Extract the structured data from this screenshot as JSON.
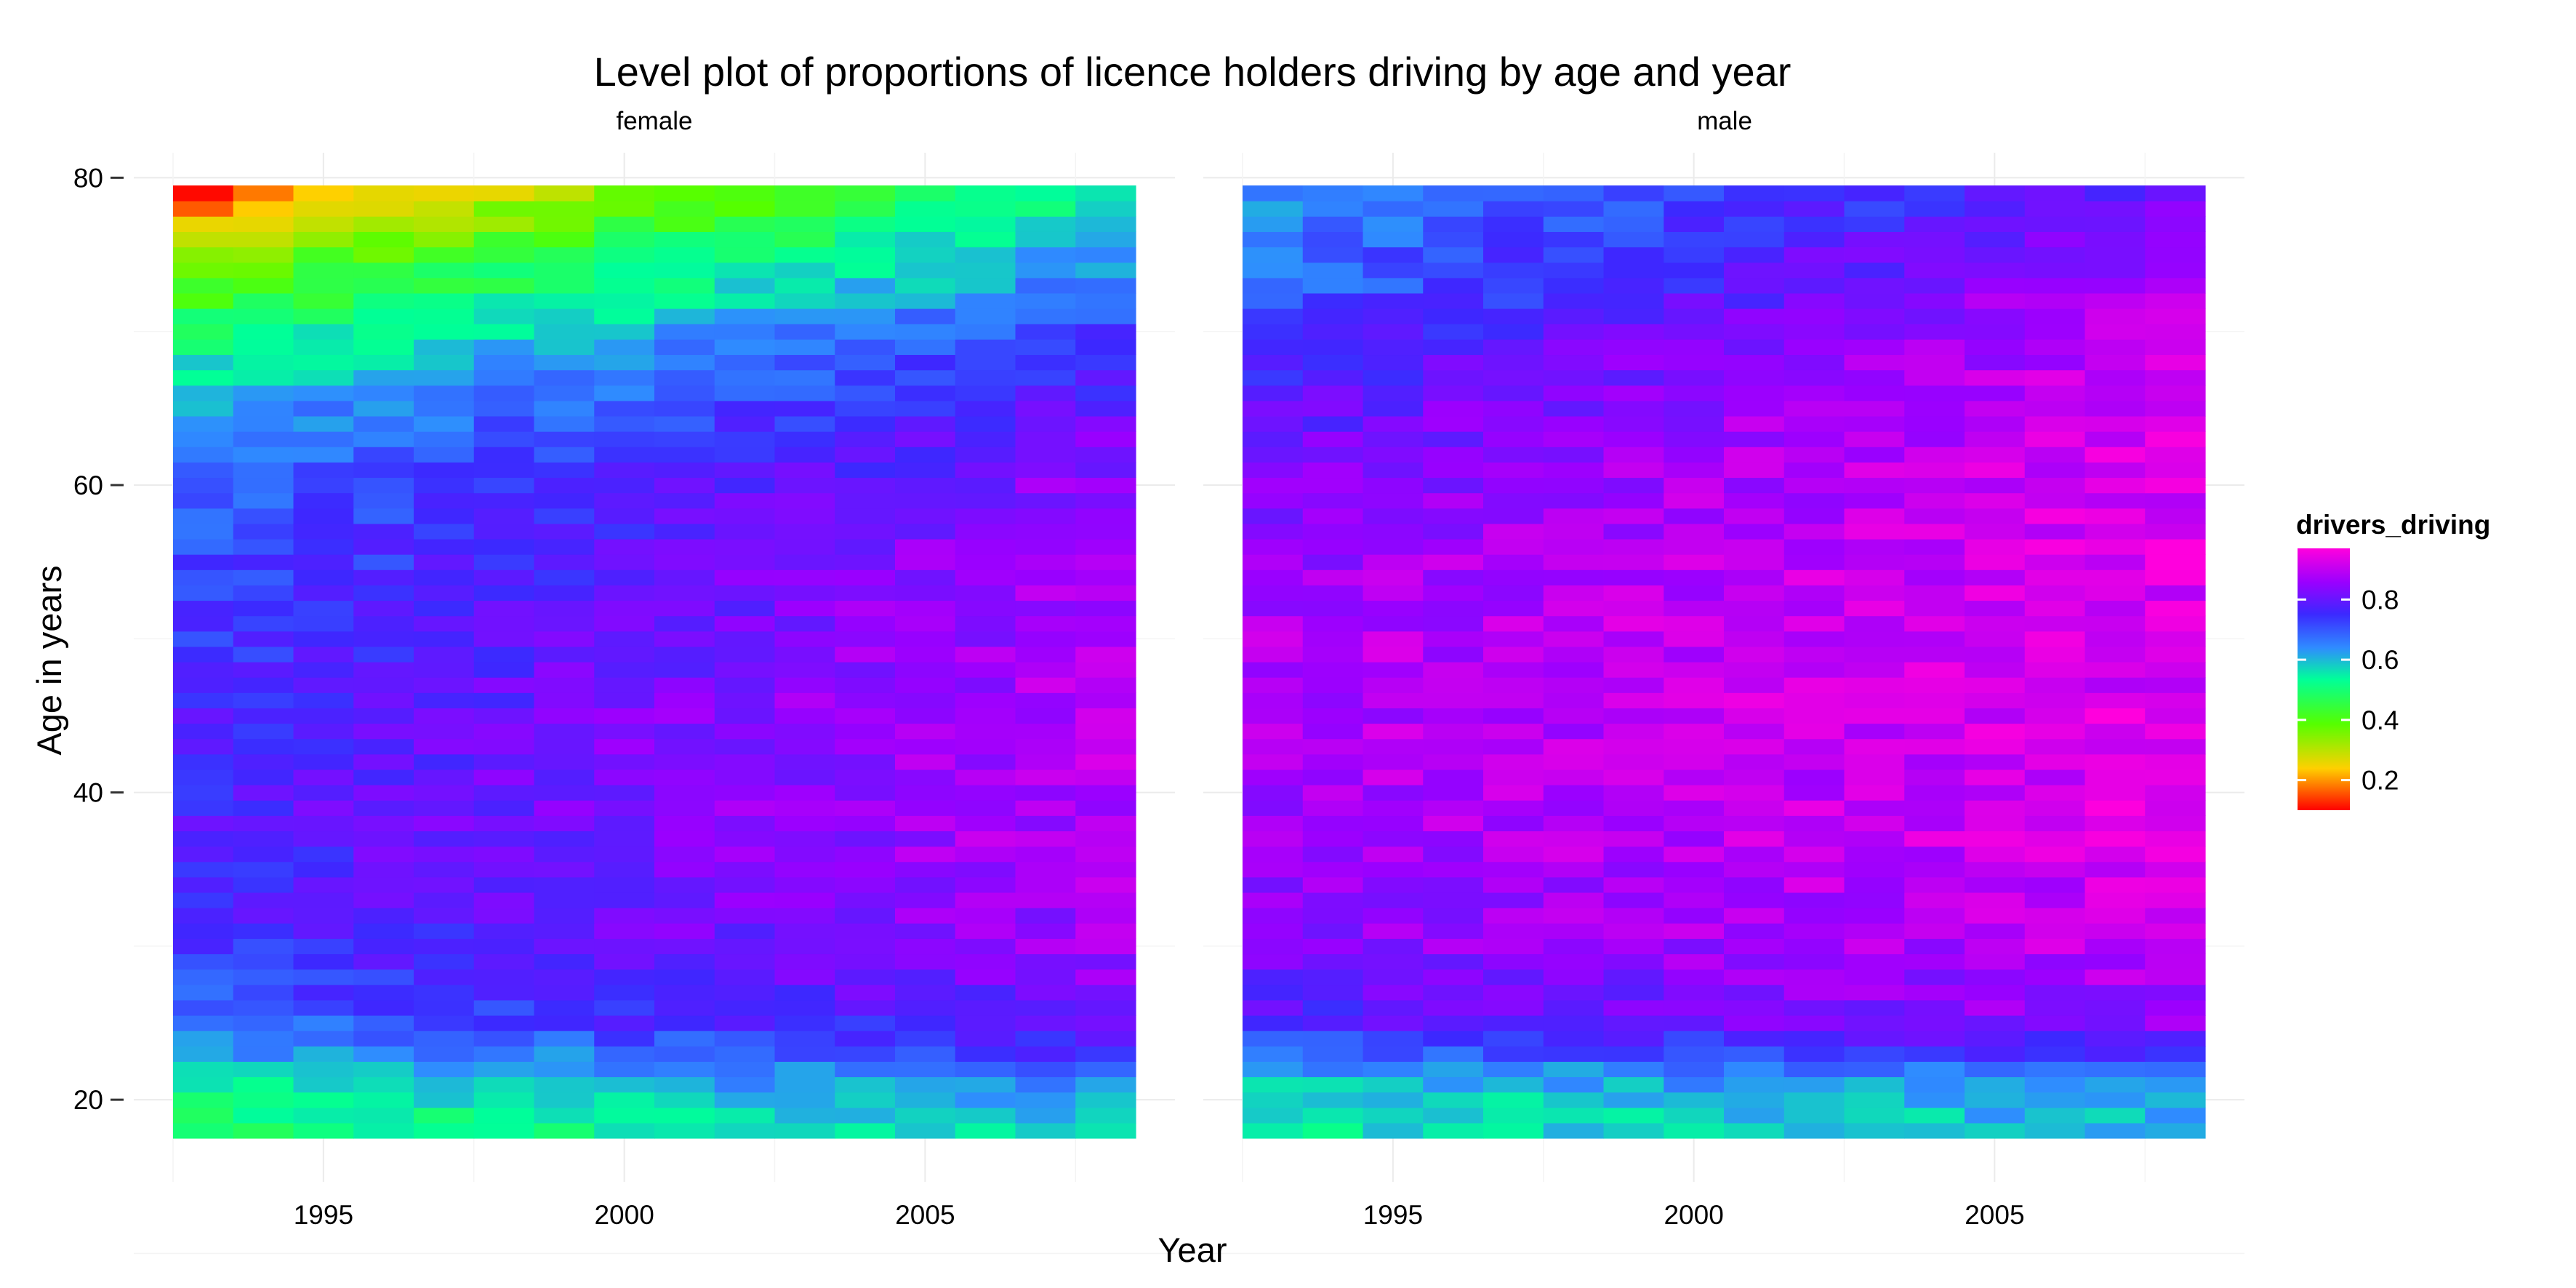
{
  "chart_data": {
    "type": "heatmap",
    "title": "Level plot of proportions of licence holders driving by age and year",
    "xlabel": "Year",
    "ylabel": "Age in years",
    "x_ticks": [
      1995,
      2000,
      2005
    ],
    "y_ticks": [
      20,
      40,
      60,
      80
    ],
    "years": [
      1993,
      1994,
      1995,
      1996,
      1997,
      1998,
      1999,
      2000,
      2001,
      2002,
      2003,
      2004,
      2005,
      2006,
      2007,
      2008
    ],
    "ages": [
      18,
      19,
      20,
      21,
      22,
      23,
      24,
      25,
      26,
      27,
      28,
      29,
      30,
      31,
      32,
      33,
      34,
      35,
      36,
      37,
      38,
      39,
      40,
      41,
      42,
      43,
      44,
      45,
      46,
      47,
      48,
      49,
      50,
      51,
      52,
      53,
      54,
      55,
      56,
      57,
      58,
      59,
      60,
      61,
      62,
      63,
      64,
      65,
      66,
      67,
      68,
      69,
      70,
      71,
      72,
      73,
      74,
      75,
      76,
      77,
      78,
      79
    ],
    "xlim": [
      1992.5,
      2008.5
    ],
    "ylim": [
      17.5,
      79.5
    ],
    "color_scale": {
      "name": "drivers_driving",
      "breaks": [
        0.2,
        0.4,
        0.6,
        0.8
      ],
      "limits": [
        0.1,
        0.97
      ],
      "palette": "rainbow (red → yellow → green → cyan → blue → magenta)"
    },
    "grid": true,
    "legend_position": "right",
    "panels": [
      {
        "label": "female",
        "anchors": {
          "ages": [
            18,
            20,
            22,
            25,
            30,
            35,
            40,
            45,
            50,
            55,
            60,
            65,
            70,
            73,
            76,
            79
          ],
          "year_start": [
            0.48,
            0.52,
            0.58,
            0.68,
            0.74,
            0.76,
            0.77,
            0.76,
            0.74,
            0.71,
            0.68,
            0.62,
            0.5,
            0.4,
            0.3,
            0.15
          ],
          "year_end": [
            0.58,
            0.62,
            0.7,
            0.8,
            0.86,
            0.88,
            0.89,
            0.89,
            0.88,
            0.87,
            0.85,
            0.8,
            0.72,
            0.66,
            0.6,
            0.55
          ]
        }
      },
      {
        "label": "male",
        "anchors": {
          "ages": [
            18,
            20,
            22,
            25,
            30,
            35,
            40,
            45,
            50,
            55,
            60,
            65,
            70,
            73,
            76,
            79
          ],
          "year_start": [
            0.55,
            0.56,
            0.62,
            0.76,
            0.84,
            0.86,
            0.87,
            0.88,
            0.88,
            0.86,
            0.83,
            0.79,
            0.74,
            0.68,
            0.66,
            0.63
          ],
          "year_end": [
            0.6,
            0.62,
            0.7,
            0.85,
            0.9,
            0.92,
            0.93,
            0.93,
            0.93,
            0.93,
            0.93,
            0.93,
            0.9,
            0.88,
            0.85,
            0.8
          ]
        }
      }
    ]
  }
}
